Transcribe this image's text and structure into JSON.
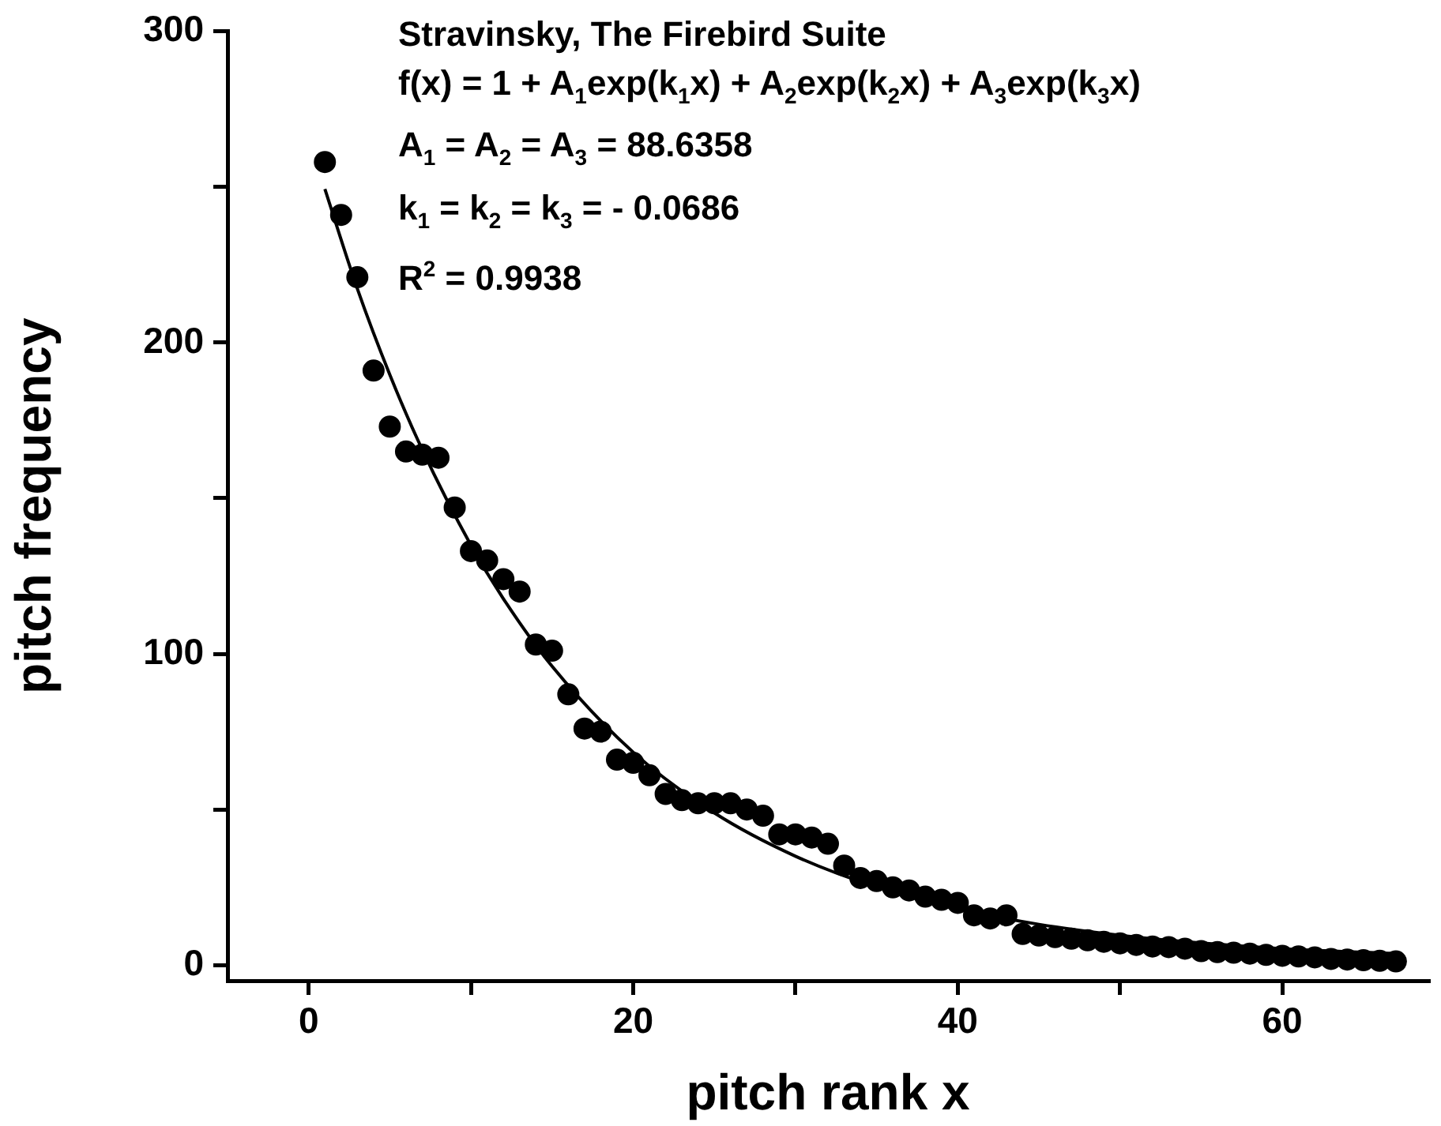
{
  "chart_data": {
    "type": "scatter",
    "xlabel": "pitch rank x",
    "ylabel": "pitch frequency",
    "annotations": [
      "Stravinsky, The Firebird Suite",
      "f(x) = 1 + A$_{1}$exp(k$_{1}$x) + A$_{2}$exp(k$_{2}$x) + A$_{3}$exp(k$_{3}$x)",
      "A$_{1}$ = A$_{2}$ = A$_{3}$ = 88.6358",
      "k$_{1}$ = k$_{2}$ = k$_{3}$ = - 0.0686",
      "R$^{2}$ = 0.9938"
    ],
    "xlim": [
      -5,
      69
    ],
    "xticks": [
      0,
      {
        "value": 10,
        "label": null
      },
      20,
      {
        "value": 30,
        "label": null
      },
      40,
      {
        "value": 50,
        "label": null
      },
      60
    ],
    "ylim": [
      -5,
      300
    ],
    "yticks": [
      0,
      {
        "value": 50,
        "label": null
      },
      100,
      {
        "value": 150,
        "label": null
      },
      200,
      {
        "value": 250,
        "label": null
      },
      300
    ],
    "grid": false,
    "legend": false,
    "marker": "circle",
    "series": [
      {
        "color": "#000000",
        "x": [
          1,
          2,
          3,
          4,
          5,
          6,
          7,
          8,
          9,
          10,
          11,
          12,
          13,
          14,
          15,
          16,
          17,
          18,
          19,
          20,
          21,
          22,
          23,
          24,
          25,
          26,
          27,
          28,
          29,
          30,
          31,
          32,
          33,
          34,
          35,
          36,
          37,
          38,
          39,
          40,
          41,
          42,
          43,
          44,
          45,
          46,
          47,
          48,
          49,
          50,
          51,
          52,
          53,
          54,
          55,
          56,
          57,
          58,
          59,
          60,
          61,
          62,
          63,
          64,
          65,
          66,
          67
        ],
        "values": [
          258,
          241,
          221,
          191,
          173,
          165,
          164,
          163,
          147,
          133,
          130,
          124,
          120,
          103,
          101,
          87,
          76,
          75,
          66,
          65,
          61,
          55,
          53,
          52,
          52,
          52,
          50,
          48,
          42,
          42,
          41,
          39,
          32,
          28,
          27,
          25,
          24,
          22,
          21,
          20,
          16,
          15,
          16,
          10,
          9.5,
          9,
          8.5,
          8,
          7.5,
          7,
          6.5,
          6,
          5.8,
          5.3,
          4.5,
          4.2,
          4,
          3.7,
          3.3,
          3,
          2.8,
          2.5,
          2,
          1.8,
          1.6,
          1.4,
          1.2
        ]
      },
      {
        "type": "line",
        "color": "#000000",
        "marker": "none",
        "line_style": "solid",
        "x": [
          1,
          3,
          5,
          7,
          10,
          12,
          15,
          20,
          25,
          30,
          35,
          40,
          45,
          50,
          55,
          60,
          67
        ],
        "values": [
          249.3,
          217.3,
          189.7,
          165.6,
          134.9,
          117.7,
          96.0,
          68.4,
          48.9,
          35.0,
          25.1,
          18.1,
          13.1,
          9.6,
          7.1,
          5.3,
          3.7
        ]
      }
    ]
  }
}
